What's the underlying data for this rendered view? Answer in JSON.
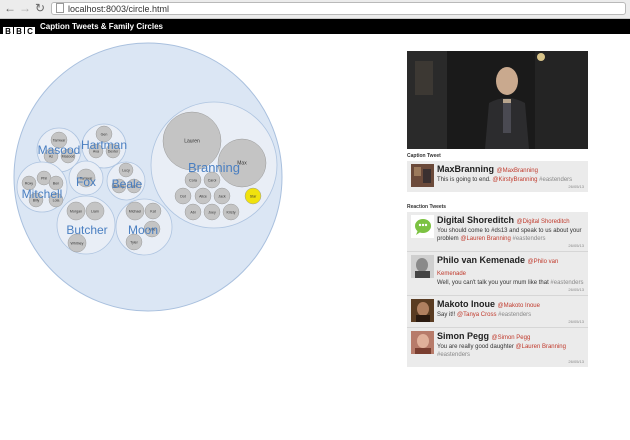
{
  "browser": {
    "url": "localhost:8003/circle.html"
  },
  "app": {
    "logo": [
      "B",
      "B",
      "C"
    ],
    "title": "Caption Tweets & Family Circles"
  },
  "families": [
    {
      "name": "Masood",
      "members": [
        "Tamwar",
        "Az",
        "Masood"
      ]
    },
    {
      "name": "Hartman",
      "members": [
        "Gen",
        "Ava",
        "Dexter"
      ]
    },
    {
      "name": "Mitchell",
      "members": [
        "Roxy",
        "Phil",
        "Ben",
        "Billy",
        "Lola"
      ]
    },
    {
      "name": "Fox",
      "members": [
        "Tamwar"
      ]
    },
    {
      "name": "Beale",
      "members": [
        "Lucy",
        "Bobby",
        "Ian"
      ]
    },
    {
      "name": "Butcher",
      "members": [
        "Morgan",
        "Liam",
        "Whitney"
      ]
    },
    {
      "name": "Moon",
      "members": [
        "Michael",
        "Kat",
        "Alfie",
        "Tyler"
      ]
    },
    {
      "name": "Branning",
      "members": [
        "Lauren",
        "Max",
        "Cora",
        "Carol",
        "Dot",
        "Alice",
        "Jack",
        "Abi",
        "Joey",
        "Kirsty",
        "Star"
      ]
    }
  ],
  "panel": {
    "caption_heading": "Caption Tweet",
    "reaction_heading": "Reaction Tweets",
    "caption_tweet": {
      "name": "MaxBranning",
      "handle": "@MaxBranning",
      "text": "This is going to end.",
      "mention": "@KirstyBranning",
      "hashtag": "#eastenders",
      "date": "26/05/13"
    },
    "reactions": [
      {
        "name": "Digital Shoreditch",
        "handle": "@Digital Shoreditch",
        "text": "You should come to #ds13 and speak to us about your problem",
        "mention": "@Lauren Branning",
        "hashtag": "#eastenders",
        "date": "26/05/13"
      },
      {
        "name": "Philo van Kemenade",
        "handle": "@Philo van Kemenade",
        "text": "Well, you can't talk you your mum like that",
        "mention": "",
        "hashtag": "#eastenders",
        "date": "26/05/13"
      },
      {
        "name": "Makoto Inoue",
        "handle": "@Makoto Inoue",
        "text": "Say it!!",
        "mention": "@Tanya Cross",
        "hashtag": "#eastenders",
        "date": "26/05/13"
      },
      {
        "name": "Simon Pegg",
        "handle": "@Simon Pegg",
        "text": "You are really good daughter",
        "mention": "@Lauren Branning",
        "hashtag": "#eastenders",
        "date": "26/05/13"
      }
    ]
  },
  "colors": {
    "highlight": "#f0e20e",
    "family_label": "#4a7fc1",
    "mention": "#c0392b",
    "outer_fill": "#dbe6f4",
    "circle_fill": "#c4c4c4"
  }
}
